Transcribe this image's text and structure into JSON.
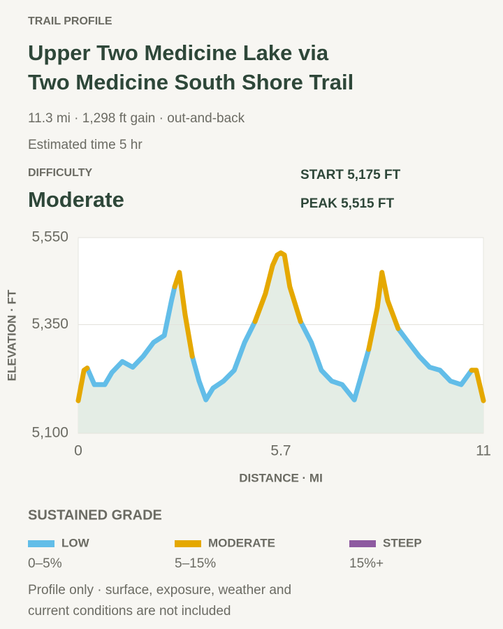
{
  "header": {
    "eyebrow": "TRAIL PROFILE",
    "title_lines": [
      "Upper Two Medicine Lake via",
      "Two Medicine South Shore Trail"
    ],
    "summary": "11.3 mi · 1,298 ft gain · out-and-back",
    "estimate": "Estimated time 5 hr"
  },
  "difficulty": {
    "label": "DIFFICULTY",
    "value": "Moderate"
  },
  "stats": [
    "START 5,175 FT",
    "PEAK 5,515 FT"
  ],
  "chart_data": {
    "type": "line",
    "x": [
      0,
      0.16,
      0.25,
      0.45,
      0.74,
      0.94,
      1.23,
      1.52,
      1.81,
      2.1,
      2.4,
      2.6,
      2.69,
      2.82,
      2.98,
      3.18,
      3.37,
      3.56,
      3.76,
      4.05,
      4.35,
      4.64,
      4.93,
      5.22,
      5.42,
      5.55,
      5.65,
      5.75,
      5.9,
      6.2,
      6.5,
      6.78,
      7.07,
      7.36,
      7.7,
      7.85,
      8.1,
      8.34,
      8.47,
      8.63,
      8.92,
      9.21,
      9.51,
      9.8,
      10.09,
      10.38,
      10.68,
      10.97,
      11.1,
      11.3
    ],
    "series": [
      {
        "name": "LOW",
        "color": "#62bde8",
        "values": [
          null,
          null,
          5250,
          5212,
          5212,
          5240,
          5265,
          5252,
          5277,
          5309,
          5325,
          5405,
          5437,
          null,
          null,
          5277,
          5220,
          5177,
          5204,
          5220,
          5245,
          5309,
          5357,
          null,
          null,
          null,
          null,
          null,
          null,
          5357,
          5309,
          5245,
          5220,
          5212,
          5177,
          5220,
          5293,
          null,
          null,
          null,
          5341,
          5309,
          5277,
          5252,
          5245,
          5220,
          5212,
          5245,
          null,
          null
        ]
      },
      {
        "name": "MODERATE",
        "color": "#e5a800",
        "values": [
          5175,
          5245,
          5250,
          null,
          null,
          null,
          null,
          null,
          null,
          null,
          null,
          null,
          5437,
          5470,
          5373,
          5277,
          null,
          null,
          null,
          null,
          null,
          null,
          5357,
          5421,
          5486,
          5510,
          5515,
          5510,
          5437,
          5357,
          null,
          null,
          null,
          null,
          null,
          null,
          5293,
          5389,
          5470,
          5405,
          5341,
          null,
          null,
          null,
          null,
          null,
          null,
          5245,
          5245,
          5175
        ]
      },
      {
        "name": "STEEP",
        "color": "#8e5aa0",
        "values": [
          null,
          null,
          null,
          null,
          null,
          null,
          null,
          null,
          null,
          null,
          null,
          null,
          null,
          null,
          null,
          null,
          null,
          null,
          null,
          null,
          null,
          null,
          null,
          null,
          null,
          null,
          null,
          null,
          null,
          null,
          null,
          null,
          null,
          null,
          null,
          null,
          null,
          null,
          null,
          null,
          null,
          null,
          null,
          null,
          null,
          null,
          null,
          null,
          null,
          null
        ]
      }
    ],
    "xlim": [
      0,
      11.3
    ],
    "xticks": [
      0,
      {
        "value": 5.65,
        "label": "5.7"
      },
      {
        "value": 11.3,
        "label": "11"
      }
    ],
    "ylim": [
      5100,
      5550
    ],
    "yticks": [
      {
        "value": 5100,
        "label": "5,100"
      },
      {
        "value": 5350,
        "label": "5,350"
      },
      {
        "value": 5550,
        "label": "5,550"
      }
    ],
    "xlabel": "DISTANCE · MI",
    "ylabel": "ELEVATION · FT",
    "grid": true,
    "area_color": "#e4ede5"
  },
  "legend": {
    "title": "SUSTAINED GRADE",
    "ranges": [
      "0–5%",
      "5–15%",
      "15%+"
    ]
  },
  "footer": {
    "lines": [
      "Profile only · surface, exposure, weather and",
      "current conditions are not included"
    ]
  }
}
